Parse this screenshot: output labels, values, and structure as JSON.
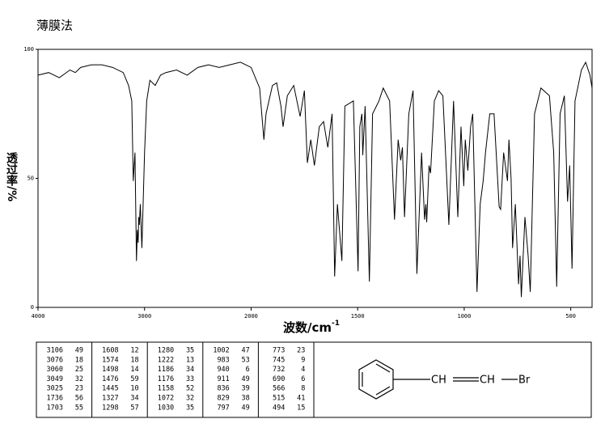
{
  "header": {
    "title": "薄膜法"
  },
  "chart_data": {
    "type": "line",
    "x_label": "波数/cm",
    "x_label_sup": "-1",
    "y_label": "透过率/%",
    "xlim": [
      4000,
      400
    ],
    "x_break": 2000,
    "ylim": [
      0,
      100
    ],
    "xticks": [
      4000,
      3000,
      2000,
      1500,
      1000,
      500
    ],
    "yticks": [
      0,
      50,
      100
    ],
    "color": "#000000",
    "x": [
      4000,
      3900,
      3800,
      3700,
      3650,
      3600,
      3500,
      3400,
      3300,
      3200,
      3150,
      3120,
      3106,
      3090,
      3076,
      3068,
      3060,
      3055,
      3049,
      3040,
      3025,
      3000,
      2980,
      2950,
      2900,
      2850,
      2800,
      2700,
      2600,
      2500,
      2400,
      2300,
      2200,
      2100,
      2000,
      1960,
      1945,
      1940,
      1930,
      1900,
      1880,
      1860,
      1850,
      1830,
      1800,
      1780,
      1770,
      1750,
      1736,
      1720,
      1703,
      1680,
      1660,
      1640,
      1620,
      1608,
      1595,
      1574,
      1560,
      1520,
      1498,
      1490,
      1480,
      1476,
      1465,
      1445,
      1430,
      1400,
      1380,
      1350,
      1327,
      1310,
      1298,
      1290,
      1280,
      1260,
      1240,
      1222,
      1200,
      1186,
      1180,
      1176,
      1165,
      1158,
      1140,
      1120,
      1100,
      1072,
      1050,
      1030,
      1015,
      1002,
      995,
      983,
      970,
      960,
      940,
      925,
      911,
      900,
      880,
      860,
      836,
      829,
      815,
      797,
      790,
      780,
      773,
      760,
      745,
      738,
      732,
      715,
      700,
      690,
      670,
      640,
      600,
      580,
      566,
      550,
      530,
      515,
      505,
      494,
      480,
      450,
      430,
      410,
      400
    ],
    "values": [
      90,
      91,
      89,
      92,
      91,
      93,
      94,
      94,
      93,
      91,
      86,
      80,
      49,
      60,
      18,
      30,
      25,
      35,
      32,
      40,
      23,
      60,
      80,
      88,
      86,
      90,
      91,
      92,
      90,
      93,
      94,
      93,
      94,
      95,
      93,
      85,
      70,
      65,
      75,
      86,
      87,
      78,
      70,
      82,
      86,
      78,
      74,
      84,
      56,
      65,
      55,
      70,
      72,
      62,
      75,
      12,
      40,
      18,
      78,
      80,
      14,
      70,
      75,
      59,
      78,
      10,
      75,
      80,
      85,
      80,
      34,
      65,
      57,
      62,
      35,
      75,
      84,
      13,
      60,
      34,
      40,
      33,
      55,
      52,
      80,
      84,
      82,
      32,
      80,
      35,
      70,
      47,
      65,
      53,
      70,
      75,
      6,
      40,
      49,
      60,
      75,
      75,
      39,
      38,
      60,
      49,
      65,
      50,
      23,
      40,
      9,
      20,
      4,
      35,
      20,
      6,
      75,
      85,
      82,
      60,
      8,
      75,
      82,
      41,
      55,
      15,
      80,
      92,
      95,
      90,
      85
    ]
  },
  "peak_table": {
    "columns": [
      [
        [
          3106,
          49
        ],
        [
          3076,
          18
        ],
        [
          3060,
          25
        ],
        [
          3049,
          32
        ],
        [
          3025,
          23
        ],
        [
          1736,
          56
        ],
        [
          1703,
          55
        ]
      ],
      [
        [
          1608,
          12
        ],
        [
          1574,
          18
        ],
        [
          1498,
          14
        ],
        [
          1476,
          59
        ],
        [
          1445,
          10
        ],
        [
          1327,
          34
        ],
        [
          1298,
          57
        ]
      ],
      [
        [
          1280,
          35
        ],
        [
          1222,
          13
        ],
        [
          1186,
          34
        ],
        [
          1176,
          33
        ],
        [
          1158,
          52
        ],
        [
          1072,
          32
        ],
        [
          1030,
          35
        ]
      ],
      [
        [
          1002,
          47
        ],
        [
          983,
          53
        ],
        [
          940,
          6
        ],
        [
          911,
          49
        ],
        [
          836,
          39
        ],
        [
          829,
          38
        ],
        [
          797,
          49
        ]
      ],
      [
        [
          773,
          23
        ],
        [
          745,
          9
        ],
        [
          732,
          4
        ],
        [
          690,
          6
        ],
        [
          566,
          8
        ],
        [
          515,
          41
        ],
        [
          494,
          15
        ]
      ]
    ]
  },
  "structure": {
    "labels": [
      "CH",
      "CH",
      "Br"
    ]
  }
}
